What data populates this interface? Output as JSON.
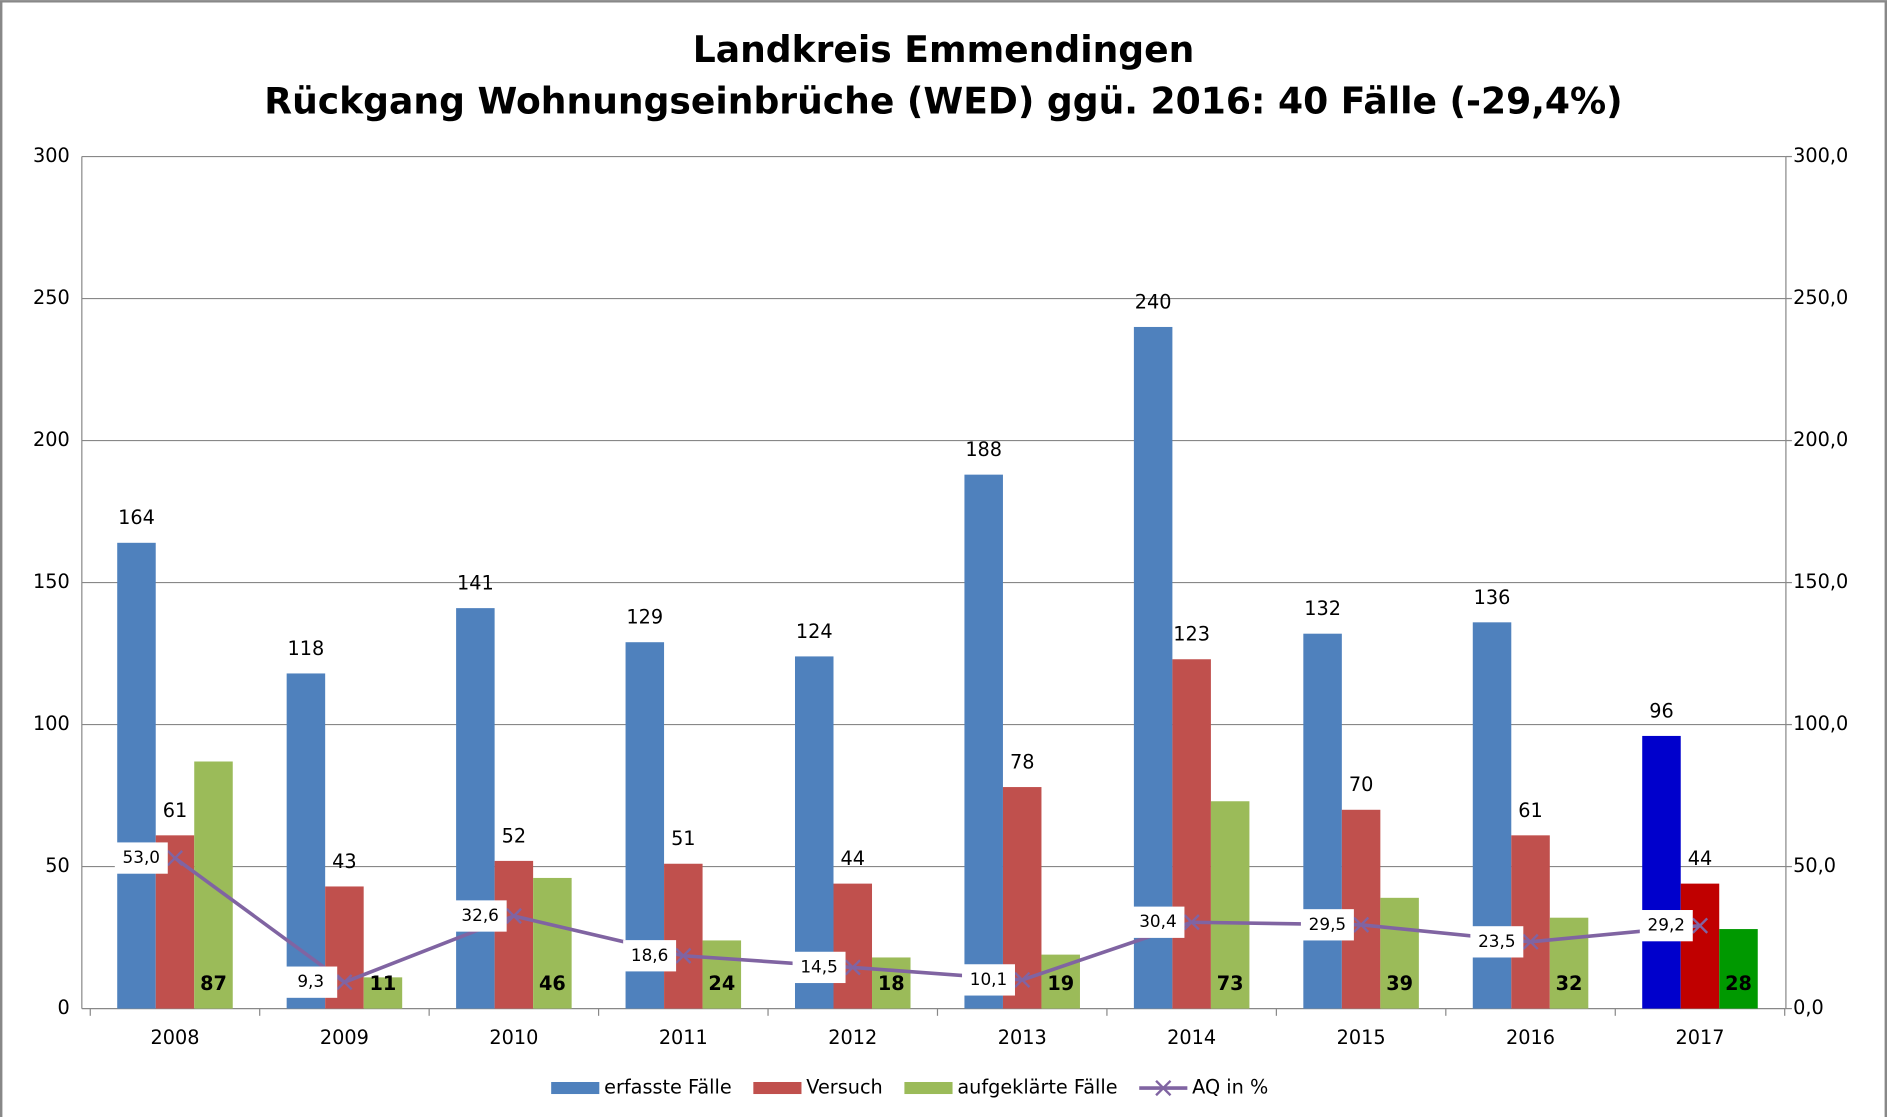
{
  "chart_data": {
    "type": "bar",
    "title": [
      "Landkreis Emmendingen",
      "Rückgang Wohnungseinbrüche (WED) ggü. 2016: 40 Fälle (-29,4%)"
    ],
    "categories": [
      "2008",
      "2009",
      "2010",
      "2011",
      "2012",
      "2013",
      "2014",
      "2015",
      "2016",
      "2017"
    ],
    "series": [
      {
        "name": "erfasste Fälle",
        "color": "#4f81bd",
        "colors": [
          "#4f81bd",
          "#4f81bd",
          "#4f81bd",
          "#4f81bd",
          "#4f81bd",
          "#4f81bd",
          "#4f81bd",
          "#4f81bd",
          "#4f81bd",
          "#0000cc"
        ],
        "values": [
          164,
          118,
          141,
          129,
          124,
          188,
          240,
          132,
          136,
          96
        ]
      },
      {
        "name": "Versuch",
        "color": "#c0504d",
        "colors": [
          "#c0504d",
          "#c0504d",
          "#c0504d",
          "#c0504d",
          "#c0504d",
          "#c0504d",
          "#c0504d",
          "#c0504d",
          "#c0504d",
          "#c00000"
        ],
        "values": [
          61,
          43,
          52,
          51,
          44,
          78,
          123,
          70,
          61,
          44
        ]
      },
      {
        "name": "aufgeklärte Fälle",
        "color": "#9bbb59",
        "colors": [
          "#9bbb59",
          "#9bbb59",
          "#9bbb59",
          "#9bbb59",
          "#9bbb59",
          "#9bbb59",
          "#9bbb59",
          "#9bbb59",
          "#9bbb59",
          "#009900"
        ],
        "values": [
          87,
          11,
          46,
          24,
          18,
          19,
          73,
          39,
          32,
          28
        ]
      },
      {
        "name": "AQ in %",
        "type": "line",
        "axis": "y2",
        "color": "#8064a2",
        "values": [
          53.0,
          9.3,
          32.6,
          18.6,
          14.5,
          10.1,
          30.4,
          29.5,
          23.5,
          29.2
        ],
        "value_labels": [
          "53,0",
          "9,3",
          "32,6",
          "18,6",
          "14,5",
          "10,1",
          "30,4",
          "29,5",
          "23,5",
          "29,2"
        ]
      }
    ],
    "ylim": [
      0,
      300
    ],
    "yticks": [
      0,
      50,
      100,
      150,
      200,
      250,
      300
    ],
    "y2lim": [
      0,
      300
    ],
    "y2ticks": [
      {
        "value": 0,
        "label": "0,0"
      },
      {
        "value": 50,
        "label": "50,0"
      },
      {
        "value": 100,
        "label": "100,0"
      },
      {
        "value": 150,
        "label": "150,0"
      },
      {
        "value": 200,
        "label": "200,0"
      },
      {
        "value": 250,
        "label": "250,0"
      },
      {
        "value": 300,
        "label": "300,0"
      }
    ],
    "grid": true,
    "legend": "bottom"
  }
}
